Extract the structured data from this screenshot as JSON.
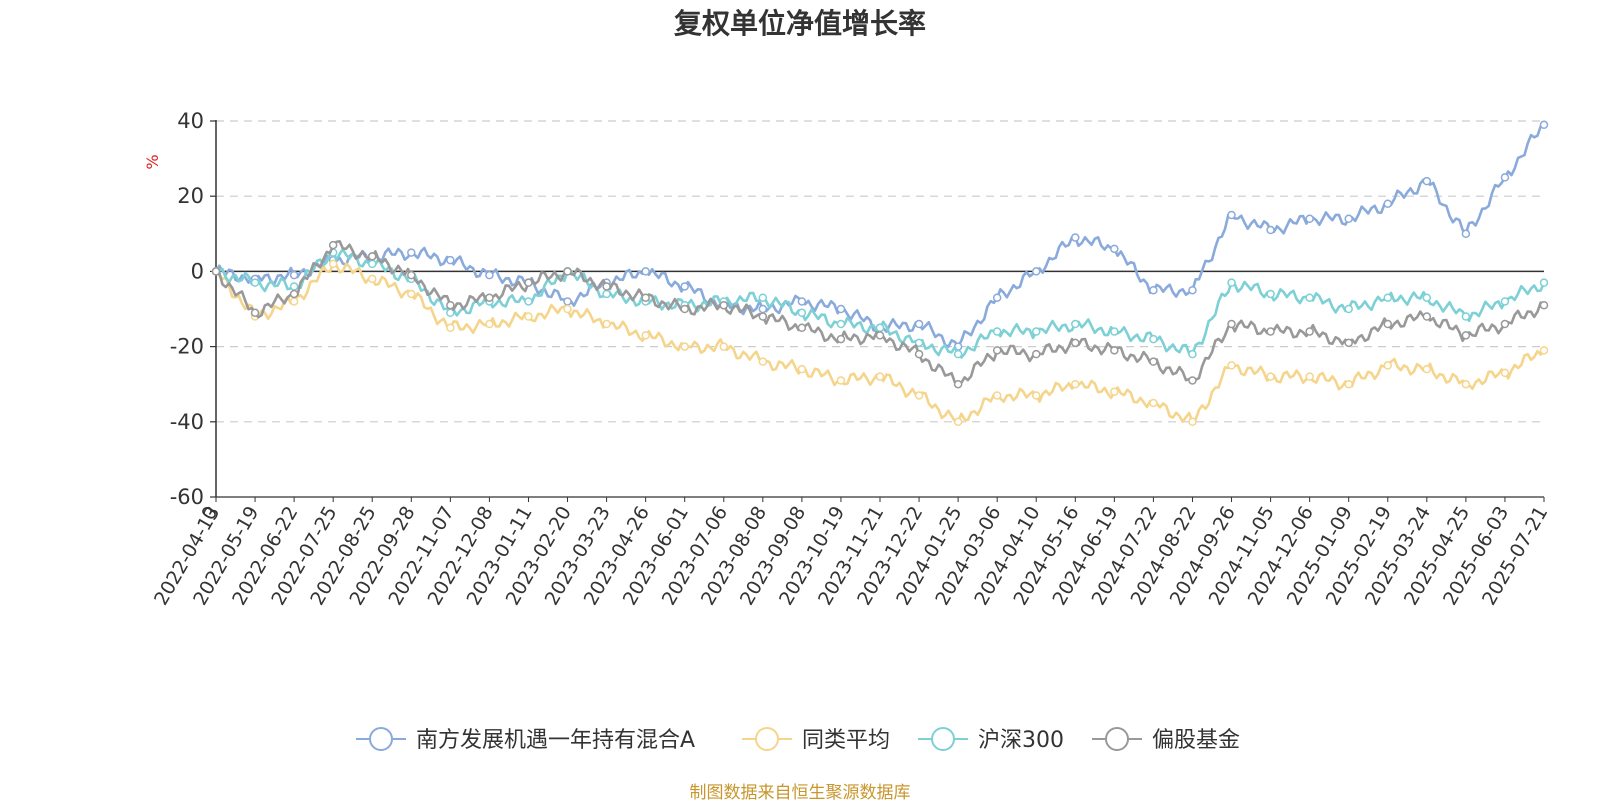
{
  "title": "复权单位净值增长率",
  "source": "制图数据来自恒生聚源数据库",
  "chart_data": {
    "type": "line",
    "ylabel": "%",
    "ylim": [
      -60,
      40
    ],
    "yticks": [
      40,
      20,
      0,
      -20,
      -40,
      -60
    ],
    "grid": true,
    "legend_position": "bottom-center",
    "x_origin_label": "0",
    "x": [
      "2022-04-13",
      "2022-05-19",
      "2022-06-22",
      "2022-07-25",
      "2022-08-25",
      "2022-09-28",
      "2022-11-07",
      "2022-12-08",
      "2023-01-11",
      "2023-02-20",
      "2023-03-23",
      "2023-04-26",
      "2023-06-01",
      "2023-07-06",
      "2023-08-08",
      "2023-09-08",
      "2023-10-19",
      "2023-11-21",
      "2023-12-22",
      "2024-01-25",
      "2024-03-06",
      "2024-04-10",
      "2024-05-16",
      "2024-06-19",
      "2024-07-22",
      "2024-08-22",
      "2024-09-26",
      "2024-11-05",
      "2024-12-06",
      "2025-01-09",
      "2025-02-19",
      "2025-03-24",
      "2025-04-25",
      "2025-06-03",
      "2025-07-21"
    ],
    "series": [
      {
        "name": "南方发展机遇一年持有混合A",
        "color": "#8aaadc",
        "values": [
          0,
          -2,
          -1,
          3,
          4,
          5,
          3,
          -1,
          -3,
          -8,
          -3,
          0,
          -4,
          -9,
          -10,
          -8,
          -10,
          -15,
          -14,
          -20,
          -7,
          0,
          9,
          6,
          -5,
          -5,
          15,
          11,
          14,
          14,
          18,
          24,
          10,
          25,
          39
        ]
      },
      {
        "name": "同类平均",
        "color": "#f5d58c",
        "values": [
          0,
          -12,
          -8,
          2,
          -2,
          -6,
          -15,
          -14,
          -12,
          -10,
          -14,
          -17,
          -20,
          -20,
          -24,
          -26,
          -29,
          -28,
          -33,
          -40,
          -33,
          -33,
          -30,
          -32,
          -35,
          -40,
          -25,
          -28,
          -28,
          -30,
          -25,
          -26,
          -30,
          -27,
          -21
        ]
      },
      {
        "name": "沪深300",
        "color": "#7dd0d6",
        "values": [
          0,
          -3,
          -4,
          5,
          2,
          -2,
          -11,
          -8,
          -8,
          0,
          -6,
          -8,
          -9,
          -8,
          -7,
          -11,
          -14,
          -15,
          -19,
          -22,
          -16,
          -16,
          -14,
          -16,
          -18,
          -22,
          -3,
          -6,
          -7,
          -10,
          -7,
          -7,
          -12,
          -8,
          -3
        ]
      },
      {
        "name": "偏股基金",
        "color": "#999999",
        "values": [
          0,
          -11,
          -6,
          7,
          4,
          -1,
          -9,
          -7,
          -3,
          0,
          -4,
          -7,
          -10,
          -9,
          -12,
          -15,
          -18,
          -17,
          -22,
          -30,
          -21,
          -22,
          -19,
          -21,
          -24,
          -29,
          -14,
          -16,
          -16,
          -19,
          -14,
          -12,
          -17,
          -14,
          -9
        ]
      }
    ]
  }
}
